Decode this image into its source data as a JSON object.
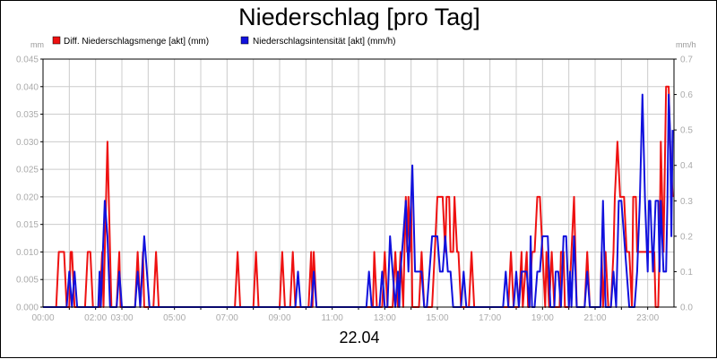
{
  "title": "Niederschlag [pro Tag]",
  "date_label": "22.04",
  "colors": {
    "red": "#ee1111",
    "blue": "#1111dd",
    "grid": "#cccccc",
    "tick": "#aaaaaa"
  },
  "chart_data": {
    "type": "line",
    "title": "Niederschlag [pro Tag]",
    "xlabel": "22.04",
    "left_axis_unit": "mm",
    "right_axis_unit": "mm/h",
    "y_left": {
      "min": 0,
      "max": 0.045,
      "ticks": [
        "0.000",
        "0.005",
        "0.010",
        "0.015",
        "0.020",
        "0.025",
        "0.030",
        "0.035",
        "0.040",
        "0.045"
      ]
    },
    "y_right": {
      "min": 0,
      "max": 0.7,
      "ticks": [
        "0.0",
        "0.1",
        "0.2",
        "0.3",
        "0.4",
        "0.5",
        "0.6",
        "0.7"
      ]
    },
    "x_range_hours": [
      0,
      24
    ],
    "x_ticks": [
      {
        "h": 0,
        "label": "00:00"
      },
      {
        "h": 2,
        "label": "02:00"
      },
      {
        "h": 3,
        "label": "03:00"
      },
      {
        "h": 5,
        "label": "05:00"
      },
      {
        "h": 7,
        "label": "07:00"
      },
      {
        "h": 9,
        "label": "09:00"
      },
      {
        "h": 11,
        "label": "11:00"
      },
      {
        "h": 13,
        "label": "13:00"
      },
      {
        "h": 15,
        "label": "15:00"
      },
      {
        "h": 17,
        "label": "17:00"
      },
      {
        "h": 19,
        "label": "19:00"
      },
      {
        "h": 21,
        "label": "21:00"
      },
      {
        "h": 23,
        "label": "23:00"
      }
    ],
    "grid": true,
    "legend_position": "top-left",
    "series": [
      {
        "name": "Diff. Niederschlagsmenge [akt] (mm)",
        "axis": "left",
        "color": "#ee1111",
        "points": [
          [
            0.0,
            0
          ],
          [
            0.5,
            0
          ],
          [
            0.6,
            0.01
          ],
          [
            0.8,
            0.01
          ],
          [
            0.9,
            0
          ],
          [
            1.0,
            0
          ],
          [
            1.05,
            0.01
          ],
          [
            1.1,
            0.01
          ],
          [
            1.2,
            0
          ],
          [
            1.6,
            0
          ],
          [
            1.7,
            0.01
          ],
          [
            1.8,
            0.01
          ],
          [
            1.9,
            0
          ],
          [
            2.15,
            0
          ],
          [
            2.25,
            0.01
          ],
          [
            2.3,
            0
          ],
          [
            2.35,
            0.01
          ],
          [
            2.45,
            0.03
          ],
          [
            2.55,
            0.01
          ],
          [
            2.6,
            0
          ],
          [
            2.8,
            0
          ],
          [
            2.9,
            0.01
          ],
          [
            2.95,
            0
          ],
          [
            3.5,
            0
          ],
          [
            3.6,
            0.01
          ],
          [
            3.7,
            0
          ],
          [
            3.8,
            0.01
          ],
          [
            3.85,
            0
          ],
          [
            4.2,
            0
          ],
          [
            4.3,
            0.01
          ],
          [
            4.4,
            0
          ],
          [
            7.3,
            0
          ],
          [
            7.4,
            0.01
          ],
          [
            7.5,
            0
          ],
          [
            8.0,
            0
          ],
          [
            8.1,
            0.01
          ],
          [
            8.2,
            0
          ],
          [
            9.0,
            0
          ],
          [
            9.1,
            0.01
          ],
          [
            9.2,
            0
          ],
          [
            9.4,
            0
          ],
          [
            9.5,
            0.01
          ],
          [
            9.6,
            0
          ],
          [
            10.1,
            0
          ],
          [
            10.2,
            0.01
          ],
          [
            10.25,
            0
          ],
          [
            10.3,
            0.01
          ],
          [
            10.4,
            0
          ],
          [
            12.55,
            0
          ],
          [
            12.6,
            0.01
          ],
          [
            12.7,
            0
          ],
          [
            12.9,
            0
          ],
          [
            13.0,
            0.01
          ],
          [
            13.1,
            0
          ],
          [
            13.3,
            0
          ],
          [
            13.4,
            0.01
          ],
          [
            13.5,
            0
          ],
          [
            13.6,
            0.01
          ],
          [
            13.7,
            0
          ],
          [
            13.75,
            0.01
          ],
          [
            13.8,
            0.02
          ],
          [
            13.85,
            0.01
          ],
          [
            13.9,
            0.02
          ],
          [
            13.95,
            0.01
          ],
          [
            14.0,
            0.02
          ],
          [
            14.05,
            0
          ],
          [
            14.3,
            0
          ],
          [
            14.4,
            0.01
          ],
          [
            14.5,
            0
          ],
          [
            14.8,
            0
          ],
          [
            14.9,
            0.01
          ],
          [
            15.0,
            0.02
          ],
          [
            15.2,
            0.02
          ],
          [
            15.3,
            0.01
          ],
          [
            15.35,
            0.02
          ],
          [
            15.45,
            0.02
          ],
          [
            15.5,
            0.01
          ],
          [
            15.6,
            0.01
          ],
          [
            15.65,
            0.02
          ],
          [
            15.75,
            0.01
          ],
          [
            15.8,
            0.01
          ],
          [
            15.9,
            0
          ],
          [
            16.2,
            0
          ],
          [
            16.3,
            0.01
          ],
          [
            16.4,
            0
          ],
          [
            17.7,
            0
          ],
          [
            17.8,
            0.01
          ],
          [
            17.9,
            0
          ],
          [
            18.1,
            0
          ],
          [
            18.2,
            0.01
          ],
          [
            18.25,
            0
          ],
          [
            18.4,
            0.01
          ],
          [
            18.45,
            0
          ],
          [
            18.5,
            0
          ],
          [
            18.6,
            0.01
          ],
          [
            18.7,
            0.01
          ],
          [
            18.8,
            0.02
          ],
          [
            18.9,
            0.02
          ],
          [
            19.0,
            0.01
          ],
          [
            19.1,
            0
          ],
          [
            19.15,
            0.01
          ],
          [
            19.25,
            0
          ],
          [
            19.35,
            0.01
          ],
          [
            19.45,
            0
          ],
          [
            19.65,
            0
          ],
          [
            19.7,
            0.01
          ],
          [
            19.8,
            0.01
          ],
          [
            19.85,
            0
          ],
          [
            20.0,
            0
          ],
          [
            20.1,
            0.01
          ],
          [
            20.2,
            0.02
          ],
          [
            20.3,
            0
          ],
          [
            20.6,
            0
          ],
          [
            20.7,
            0.01
          ],
          [
            20.8,
            0
          ],
          [
            21.2,
            0
          ],
          [
            21.25,
            0.01
          ],
          [
            21.3,
            0
          ],
          [
            21.4,
            0.01
          ],
          [
            21.5,
            0
          ],
          [
            21.6,
            0
          ],
          [
            21.7,
            0.01
          ],
          [
            21.75,
            0.02
          ],
          [
            21.85,
            0.03
          ],
          [
            21.95,
            0.02
          ],
          [
            22.1,
            0.02
          ],
          [
            22.2,
            0.01
          ],
          [
            22.3,
            0.01
          ],
          [
            22.4,
            0
          ],
          [
            22.45,
            0.02
          ],
          [
            22.55,
            0.02
          ],
          [
            22.6,
            0.01
          ],
          [
            22.7,
            0.01
          ],
          [
            22.8,
            0.01
          ],
          [
            22.9,
            0.01
          ],
          [
            23.05,
            0.01
          ],
          [
            23.15,
            0.01
          ],
          [
            23.25,
            0.01
          ],
          [
            23.3,
            0
          ],
          [
            23.4,
            0
          ],
          [
            23.45,
            0.01
          ],
          [
            23.5,
            0.03
          ],
          [
            23.6,
            0.01
          ],
          [
            23.7,
            0.04
          ],
          [
            23.8,
            0.04
          ],
          [
            23.85,
            0.03
          ],
          [
            23.95,
            0.02
          ]
        ]
      },
      {
        "name": "Niederschlagsintensität [akt] (mm/h)",
        "axis": "right",
        "color": "#1111dd",
        "points": [
          [
            0.0,
            0
          ],
          [
            0.9,
            0
          ],
          [
            1.0,
            0.1
          ],
          [
            1.1,
            0
          ],
          [
            1.2,
            0.1
          ],
          [
            1.3,
            0
          ],
          [
            2.1,
            0
          ],
          [
            2.15,
            0.1
          ],
          [
            2.2,
            0
          ],
          [
            2.35,
            0.3
          ],
          [
            2.45,
            0.2
          ],
          [
            2.55,
            0
          ],
          [
            2.8,
            0
          ],
          [
            2.9,
            0.1
          ],
          [
            3.0,
            0
          ],
          [
            3.5,
            0
          ],
          [
            3.6,
            0.1
          ],
          [
            3.7,
            0
          ],
          [
            3.85,
            0.2
          ],
          [
            3.95,
            0.1
          ],
          [
            4.05,
            0
          ],
          [
            9.6,
            0
          ],
          [
            9.7,
            0.1
          ],
          [
            9.8,
            0
          ],
          [
            10.2,
            0
          ],
          [
            10.3,
            0.1
          ],
          [
            10.4,
            0
          ],
          [
            12.3,
            0
          ],
          [
            12.4,
            0.1
          ],
          [
            12.5,
            0
          ],
          [
            12.8,
            0
          ],
          [
            12.9,
            0.1
          ],
          [
            13.0,
            0
          ],
          [
            13.1,
            0
          ],
          [
            13.2,
            0.2
          ],
          [
            13.3,
            0.1
          ],
          [
            13.4,
            0
          ],
          [
            13.5,
            0.1
          ],
          [
            13.55,
            0
          ],
          [
            13.6,
            0.1
          ],
          [
            13.7,
            0.2
          ],
          [
            13.8,
            0.3
          ],
          [
            13.9,
            0.1
          ],
          [
            14.0,
            0.3
          ],
          [
            14.05,
            0.4
          ],
          [
            14.15,
            0.1
          ],
          [
            14.3,
            0.1
          ],
          [
            14.4,
            0.1
          ],
          [
            14.5,
            0
          ],
          [
            14.6,
            0
          ],
          [
            14.7,
            0.1
          ],
          [
            14.8,
            0.2
          ],
          [
            14.9,
            0.2
          ],
          [
            15.0,
            0.2
          ],
          [
            15.1,
            0.1
          ],
          [
            15.2,
            0.1
          ],
          [
            15.3,
            0.2
          ],
          [
            15.4,
            0.1
          ],
          [
            15.5,
            0.1
          ],
          [
            15.6,
            0
          ],
          [
            15.9,
            0
          ],
          [
            16.0,
            0.1
          ],
          [
            16.1,
            0
          ],
          [
            17.5,
            0
          ],
          [
            17.6,
            0.1
          ],
          [
            17.7,
            0
          ],
          [
            17.9,
            0
          ],
          [
            18.0,
            0.1
          ],
          [
            18.1,
            0
          ],
          [
            18.2,
            0.1
          ],
          [
            18.3,
            0.1
          ],
          [
            18.4,
            0.1
          ],
          [
            18.5,
            0
          ],
          [
            18.55,
            0.2
          ],
          [
            18.6,
            0
          ],
          [
            18.7,
            0
          ],
          [
            18.8,
            0.1
          ],
          [
            18.9,
            0.1
          ],
          [
            19.0,
            0.2
          ],
          [
            19.2,
            0.2
          ],
          [
            19.3,
            0
          ],
          [
            19.45,
            0
          ],
          [
            19.5,
            0.1
          ],
          [
            19.6,
            0.1
          ],
          [
            19.7,
            0
          ],
          [
            19.8,
            0.2
          ],
          [
            19.9,
            0.2
          ],
          [
            20.0,
            0
          ],
          [
            20.05,
            0.1
          ],
          [
            20.1,
            0
          ],
          [
            20.2,
            0.2
          ],
          [
            20.3,
            0
          ],
          [
            20.6,
            0
          ],
          [
            20.7,
            0.1
          ],
          [
            20.8,
            0
          ],
          [
            21.2,
            0
          ],
          [
            21.3,
            0.3
          ],
          [
            21.4,
            0
          ],
          [
            21.6,
            0
          ],
          [
            21.7,
            0.1
          ],
          [
            21.8,
            0
          ],
          [
            21.9,
            0.3
          ],
          [
            22.0,
            0.3
          ],
          [
            22.1,
            0.2
          ],
          [
            22.2,
            0.1
          ],
          [
            22.3,
            0
          ],
          [
            22.5,
            0
          ],
          [
            22.6,
            0.1
          ],
          [
            22.7,
            0.3
          ],
          [
            22.8,
            0.6
          ],
          [
            22.9,
            0.3
          ],
          [
            23.0,
            0.1
          ],
          [
            23.05,
            0.3
          ],
          [
            23.1,
            0.3
          ],
          [
            23.2,
            0.1
          ],
          [
            23.3,
            0.3
          ],
          [
            23.4,
            0.3
          ],
          [
            23.45,
            0.1
          ],
          [
            23.5,
            0.3
          ],
          [
            23.6,
            0.1
          ],
          [
            23.7,
            0.1
          ],
          [
            23.75,
            0.3
          ],
          [
            23.8,
            0.6
          ],
          [
            23.85,
            0.5
          ],
          [
            23.9,
            0.2
          ],
          [
            23.95,
            0.5
          ]
        ]
      }
    ]
  }
}
